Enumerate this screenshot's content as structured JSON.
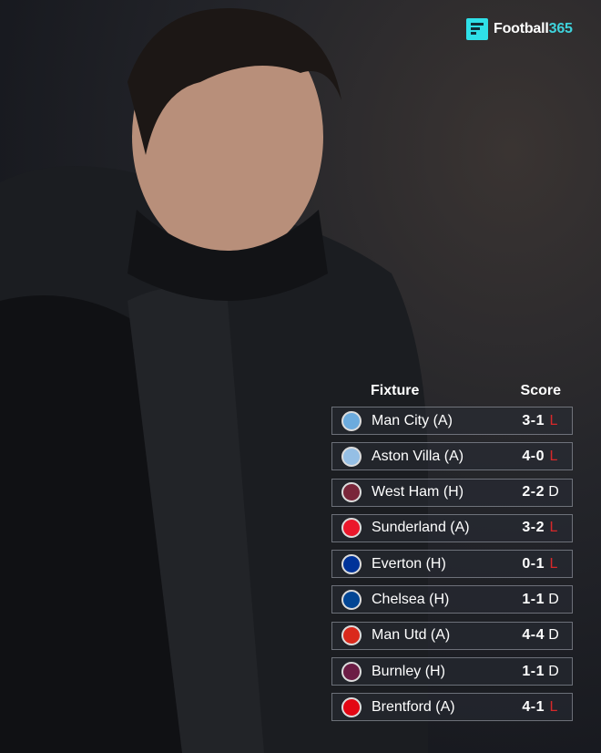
{
  "brand": {
    "name_part1": "Football",
    "name_part2": "365",
    "accent": "#2fe0e8"
  },
  "table": {
    "headers": {
      "fixture": "Fixture",
      "score": "Score"
    },
    "colors": {
      "loss": "#d8282a",
      "draw": "#ffffff"
    },
    "rows": [
      {
        "crest": "man-city-crest",
        "color": "#6cabdd",
        "fixture": "Man City (A)",
        "score": "3-1",
        "result": "L"
      },
      {
        "crest": "aston-villa-crest",
        "color": "#95bfe5",
        "fixture": "Aston Villa (A)",
        "score": "4-0",
        "result": "L"
      },
      {
        "crest": "west-ham-crest",
        "color": "#7a263a",
        "fixture": "West Ham (H)",
        "score": "2-2",
        "result": "D"
      },
      {
        "crest": "sunderland-crest",
        "color": "#eb172b",
        "fixture": "Sunderland (A)",
        "score": "3-2",
        "result": "L"
      },
      {
        "crest": "everton-crest",
        "color": "#003399",
        "fixture": "Everton (H)",
        "score": "0-1",
        "result": "L"
      },
      {
        "crest": "chelsea-crest",
        "color": "#034694",
        "fixture": "Chelsea (H)",
        "score": "1-1",
        "result": "D"
      },
      {
        "crest": "man-utd-crest",
        "color": "#da291c",
        "fixture": "Man Utd (A)",
        "score": "4-4",
        "result": "D"
      },
      {
        "crest": "burnley-crest",
        "color": "#6c1d45",
        "fixture": "Burnley (H)",
        "score": "1-1",
        "result": "D"
      },
      {
        "crest": "brentford-crest",
        "color": "#e30613",
        "fixture": "Brentford (A)",
        "score": "4-1",
        "result": "L"
      }
    ]
  }
}
